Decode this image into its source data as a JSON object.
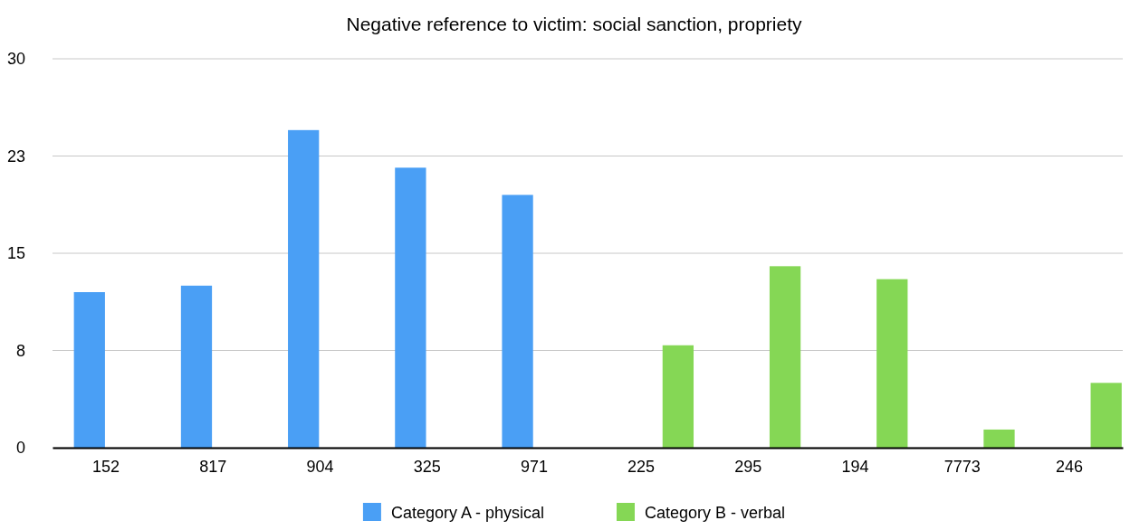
{
  "chart_data": {
    "type": "bar",
    "title": "Negative reference to victim: social sanction, propriety",
    "categories": [
      "152",
      "817",
      "904",
      "325",
      "971",
      "225",
      "295",
      "194",
      "7773",
      "246"
    ],
    "series": [
      {
        "name": "Category A - physical",
        "color": "#4a9ff5",
        "values": [
          12,
          12.5,
          24.5,
          21.6,
          19.5,
          null,
          null,
          null,
          null,
          null
        ]
      },
      {
        "name": "Category B - verbal",
        "color": "#85d755",
        "values": [
          null,
          null,
          null,
          null,
          null,
          7.9,
          14,
          13,
          1.4,
          5
        ]
      }
    ],
    "ylim": [
      0,
      30
    ],
    "yticks": [
      0,
      {
        "value": 7.5,
        "label": "8"
      },
      15,
      {
        "value": 22.5,
        "label": "23"
      },
      30
    ],
    "grid": "y",
    "legend": "bottom"
  }
}
